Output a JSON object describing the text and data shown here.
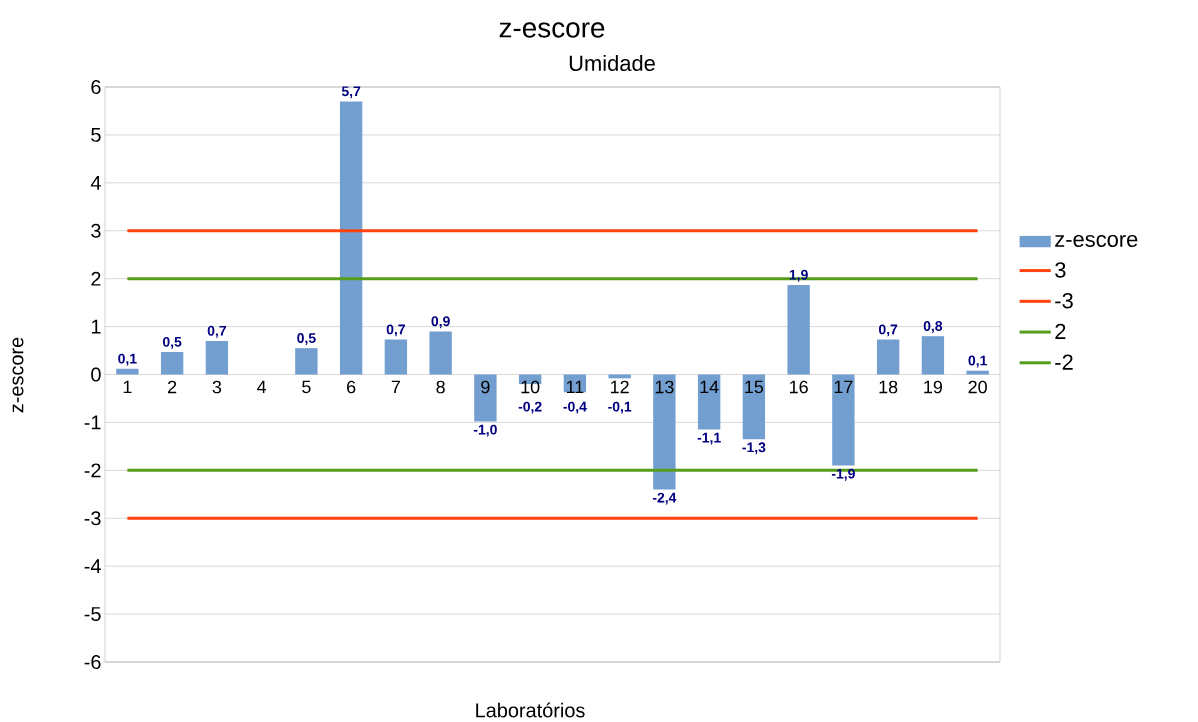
{
  "chart_data": {
    "type": "bar",
    "title": "z-escore",
    "subtitle": "Umidade",
    "xlabel": "Laboratórios",
    "ylabel": "z-escore",
    "categories": [
      "1",
      "2",
      "3",
      "4",
      "5",
      "6",
      "7",
      "8",
      "9",
      "10",
      "11",
      "12",
      "13",
      "14",
      "15",
      "16",
      "17",
      "18",
      "19",
      "20"
    ],
    "series": [
      {
        "name": "z-escore",
        "color": "#729fcf",
        "values": [
          0.12,
          0.47,
          0.7,
          null,
          0.55,
          5.7,
          0.73,
          0.9,
          -0.98,
          -0.2,
          -0.37,
          -0.08,
          -2.4,
          -1.15,
          -1.35,
          1.87,
          -1.9,
          0.73,
          0.8,
          0.08
        ],
        "value_labels": [
          "0,1",
          "0,5",
          "0,7",
          null,
          "0,5",
          "5,7",
          "0,7",
          "0,9",
          "-1,0",
          "-0,2",
          "-0,4",
          "-0,1",
          "-2,4",
          "-1,1",
          "-1,3",
          "1,9",
          "-1,9",
          "0,7",
          "0,8",
          "0,1"
        ]
      },
      {
        "name": "3",
        "type": "line",
        "color": "#ff420e",
        "values": [
          3,
          3,
          3,
          3,
          3,
          3,
          3,
          3,
          3,
          3,
          3,
          3,
          3,
          3,
          3,
          3,
          3,
          3,
          3,
          3
        ]
      },
      {
        "name": "-3",
        "type": "line",
        "color": "#ff420e",
        "values": [
          -3,
          -3,
          -3,
          -3,
          -3,
          -3,
          -3,
          -3,
          -3,
          -3,
          -3,
          -3,
          -3,
          -3,
          -3,
          -3,
          -3,
          -3,
          -3,
          -3
        ]
      },
      {
        "name": "2",
        "type": "line",
        "color": "#579d1c",
        "values": [
          2,
          2,
          2,
          2,
          2,
          2,
          2,
          2,
          2,
          2,
          2,
          2,
          2,
          2,
          2,
          2,
          2,
          2,
          2,
          2
        ]
      },
      {
        "name": "-2",
        "type": "line",
        "color": "#579d1c",
        "values": [
          -2,
          -2,
          -2,
          -2,
          -2,
          -2,
          -2,
          -2,
          -2,
          -2,
          -2,
          -2,
          -2,
          -2,
          -2,
          -2,
          -2,
          -2,
          -2,
          -2
        ]
      }
    ],
    "ylim": [
      -6,
      6
    ],
    "yticks": [
      -6,
      -5,
      -4,
      -3,
      -2,
      -1,
      0,
      1,
      2,
      3,
      4,
      5,
      6
    ],
    "grid": true,
    "legend": "right",
    "marker": "none",
    "line_style": "solid"
  }
}
